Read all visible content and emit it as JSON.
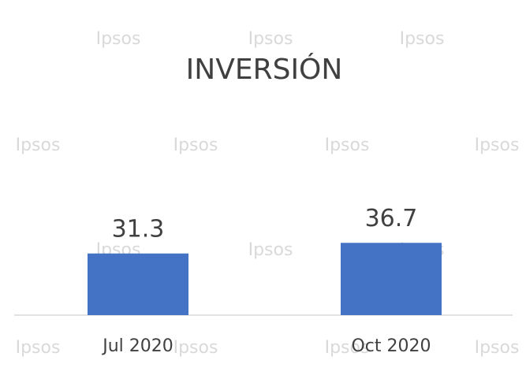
{
  "watermark": "Ipsos",
  "chart_data": {
    "type": "bar",
    "title": "INVERSIÓN",
    "categories": [
      "Jul 2020",
      "Oct 2020"
    ],
    "values": [
      31.3,
      36.7
    ],
    "color": "#4472c4"
  }
}
